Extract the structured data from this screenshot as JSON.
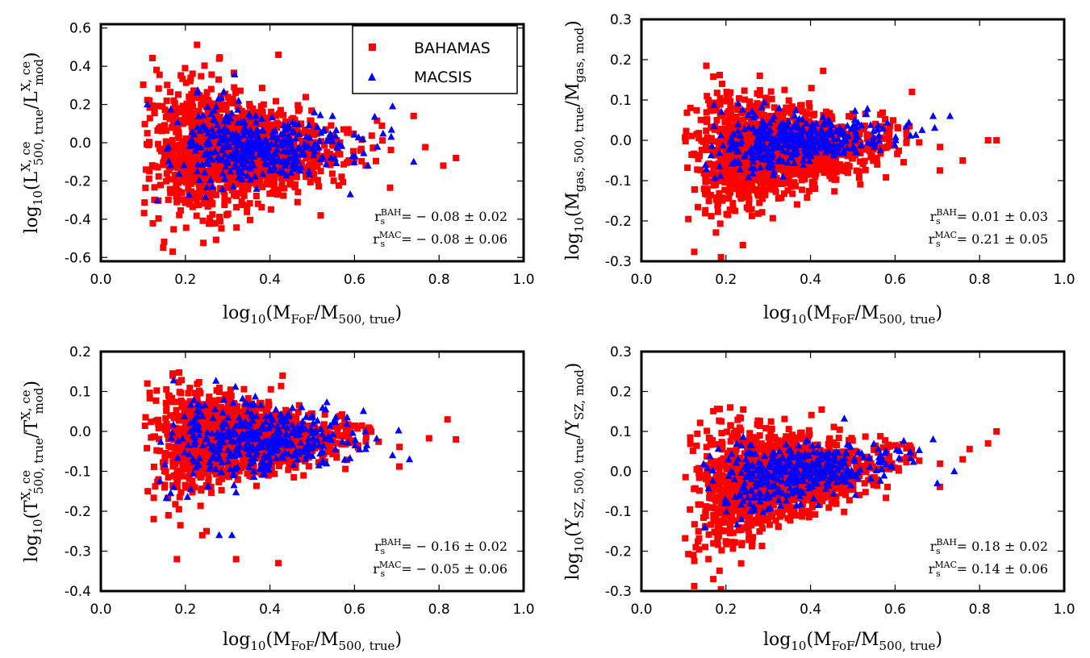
{
  "colors": {
    "bahamas": "#ff0000",
    "macsis": "#0000ff"
  },
  "chart_data": [
    {
      "id": "lx",
      "type": "scatter",
      "xlabel": "log10(M_FoF/M_500,true)",
      "ylabel": "log10(L^{X,ce}_{500,true}/L^{X,ce}_{mod})",
      "xlim": [
        0.0,
        1.0
      ],
      "ylim": [
        -0.62,
        0.62
      ],
      "xticks": [
        "0.0",
        "0.2",
        "0.4",
        "0.6",
        "0.8",
        "1.0"
      ],
      "yticks": [
        "-0.6",
        "-0.4",
        "-0.2",
        "0.0",
        "0.2",
        "0.4",
        "0.6"
      ],
      "legend": {
        "location": "top-right",
        "entries": [
          "BAHAMAS",
          "MACSIS"
        ]
      },
      "annotations": {
        "rs_bah": "= − 0.08 ± 0.02",
        "rs_mac": "= − 0.08 ± 0.06"
      },
      "series": [
        {
          "name": "BAHAMAS",
          "marker": "square",
          "count": 1400,
          "gen": {
            "xc": 0.26,
            "xs": 0.09,
            "xmin": 0.1,
            "xmax": 0.84,
            "yc": -0.05,
            "ys": 0.16,
            "ytilt": 0.0,
            "shrink": 1.3
          },
          "points": [
            [
              0.17,
              -0.57
            ],
            [
              0.42,
              0.46
            ],
            [
              0.84,
              -0.08
            ],
            [
              0.81,
              -0.12
            ],
            [
              0.52,
              -0.38
            ],
            [
              0.28,
              0.44
            ],
            [
              0.74,
              0.14
            ],
            [
              0.11,
              0.05
            ]
          ]
        },
        {
          "name": "MACSIS",
          "marker": "triangle",
          "count": 390,
          "gen": {
            "xc": 0.31,
            "xs": 0.09,
            "xmin": 0.11,
            "xmax": 0.7,
            "yc": -0.02,
            "ys": 0.1,
            "ytilt": 0.0,
            "shrink": 1.2
          },
          "points": [
            [
              0.69,
              0.19
            ],
            [
              0.11,
              0.2
            ],
            [
              0.59,
              -0.27
            ],
            [
              0.74,
              -0.1
            ]
          ]
        }
      ]
    },
    {
      "id": "mgas",
      "type": "scatter",
      "xlabel": "log10(M_FoF/M_500,true)",
      "ylabel": "log10(M_gas,500,true/M_gas,mod)",
      "xlim": [
        0.0,
        1.0
      ],
      "ylim": [
        -0.3,
        0.3
      ],
      "xticks": [
        "0.0",
        "0.2",
        "0.4",
        "0.6",
        "0.8",
        "1.0"
      ],
      "yticks": [
        "-0.3",
        "-0.2",
        "-0.1",
        "0.0",
        "0.1",
        "0.2",
        "0.3"
      ],
      "annotations": {
        "rs_bah": "= 0.01 ± 0.03",
        "rs_mac": "= 0.21 ± 0.05"
      },
      "series": [
        {
          "name": "BAHAMAS",
          "marker": "square",
          "count": 1400,
          "gen": {
            "xc": 0.26,
            "xs": 0.09,
            "xmin": 0.1,
            "xmax": 0.84,
            "yc": -0.03,
            "ys": 0.065,
            "ytilt": 0.08,
            "shrink": 1.4
          },
          "points": [
            [
              0.84,
              0.0
            ],
            [
              0.82,
              0.0
            ],
            [
              0.64,
              0.12
            ],
            [
              0.24,
              -0.26
            ],
            [
              0.28,
              0.16
            ],
            [
              0.76,
              -0.05
            ]
          ]
        },
        {
          "name": "MACSIS",
          "marker": "triangle",
          "count": 390,
          "gen": {
            "xc": 0.31,
            "xs": 0.09,
            "xmin": 0.12,
            "xmax": 0.7,
            "yc": -0.005,
            "ys": 0.035,
            "ytilt": 0.08,
            "shrink": 1.2
          },
          "points": [
            [
              0.69,
              0.06
            ],
            [
              0.73,
              0.06
            ]
          ]
        }
      ]
    },
    {
      "id": "tx",
      "type": "scatter",
      "xlabel": "log10(M_FoF/M_500,true)",
      "ylabel": "log10(T^{X,ce}_{500,true}/T^{X,ce}_{mod})",
      "xlim": [
        0.0,
        1.0
      ],
      "ylim": [
        -0.4,
        0.2
      ],
      "xticks": [
        "0.0",
        "0.2",
        "0.4",
        "0.6",
        "0.8",
        "1.0"
      ],
      "yticks": [
        "-0.4",
        "-0.3",
        "-0.2",
        "-0.1",
        "0.0",
        "0.1",
        "0.2"
      ],
      "annotations": {
        "rs_bah": "= − 0.16 ± 0.02",
        "rs_mac": "= − 0.05 ± 0.06"
      },
      "series": [
        {
          "name": "BAHAMAS",
          "marker": "square",
          "count": 1400,
          "gen": {
            "xc": 0.26,
            "xs": 0.09,
            "xmin": 0.1,
            "xmax": 0.84,
            "yc": -0.02,
            "ys": 0.055,
            "ytilt": 0.0,
            "shrink": 1.4
          },
          "points": [
            [
              0.18,
              -0.32
            ],
            [
              0.32,
              -0.32
            ],
            [
              0.42,
              -0.33
            ],
            [
              0.24,
              -0.26
            ],
            [
              0.25,
              -0.25
            ],
            [
              0.84,
              -0.02
            ],
            [
              0.82,
              0.03
            ],
            [
              0.17,
              0.14
            ],
            [
              0.11,
              0.12
            ],
            [
              0.16,
              -0.21
            ]
          ]
        },
        {
          "name": "MACSIS",
          "marker": "triangle",
          "count": 390,
          "gen": {
            "xc": 0.31,
            "xs": 0.09,
            "xmin": 0.12,
            "xmax": 0.73,
            "yc": -0.02,
            "ys": 0.05,
            "ytilt": 0.0,
            "shrink": 1.2
          },
          "points": [
            [
              0.28,
              -0.26
            ],
            [
              0.31,
              -0.26
            ],
            [
              0.73,
              -0.07
            ],
            [
              0.69,
              -0.06
            ]
          ]
        }
      ]
    },
    {
      "id": "ysz",
      "type": "scatter",
      "xlabel": "log10(M_FoF/M_500,true)",
      "ylabel": "log10(Y_SZ,500,true/Y_SZ,mod)",
      "xlim": [
        0.0,
        1.0
      ],
      "ylim": [
        -0.3,
        0.3
      ],
      "xticks": [
        "0.0",
        "0.2",
        "0.4",
        "0.6",
        "0.8",
        "1.0"
      ],
      "yticks": [
        "-0.3",
        "-0.2",
        "-0.1",
        "0.0",
        "0.1",
        "0.2",
        "0.3"
      ],
      "annotations": {
        "rs_bah": "= 0.18 ± 0.02",
        "rs_mac": "= 0.14 ± 0.06"
      },
      "series": [
        {
          "name": "BAHAMAS",
          "marker": "square",
          "count": 1400,
          "gen": {
            "xc": 0.26,
            "xs": 0.09,
            "xmin": 0.1,
            "xmax": 0.84,
            "yc": -0.03,
            "ys": 0.065,
            "ytilt": 0.16,
            "shrink": 1.4
          },
          "points": [
            [
              0.84,
              0.1
            ],
            [
              0.82,
              0.07
            ],
            [
              0.17,
              -0.27
            ],
            [
              0.21,
              0.16
            ],
            [
              0.76,
              0.03
            ]
          ]
        },
        {
          "name": "MACSIS",
          "marker": "triangle",
          "count": 390,
          "gen": {
            "xc": 0.31,
            "xs": 0.09,
            "xmin": 0.12,
            "xmax": 0.73,
            "yc": -0.01,
            "ys": 0.04,
            "ytilt": 0.12,
            "shrink": 1.2
          },
          "points": [
            [
              0.69,
              0.08
            ],
            [
              0.7,
              -0.03
            ],
            [
              0.74,
              0.0
            ],
            [
              0.15,
              -0.14
            ]
          ]
        }
      ]
    }
  ]
}
